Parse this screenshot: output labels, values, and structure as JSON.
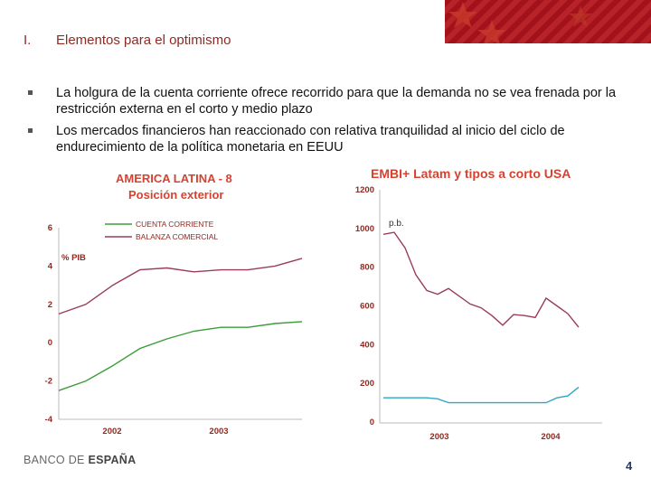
{
  "section": {
    "number": "I.",
    "title": "Elementos para el optimismo"
  },
  "bullets": [
    {
      "text": "La holgura de la cuenta corriente ofrece recorrido para que la demanda no se vea frenada por la restricción externa en el corto y medio plazo"
    },
    {
      "text": "Los mercados financieros han reaccionado con relativa tranquilidad al inicio del ciclo de endurecimiento de la política monetaria en EEUU"
    }
  ],
  "footer": {
    "logo_part1": "BANCO DE ",
    "logo_part2": "ESPAÑA",
    "page_number": "4"
  },
  "colors": {
    "title": "#8e2a22",
    "chart_title": "#d9412f",
    "green": "#3a9d3a",
    "purple": "#9a3b5e",
    "cyan": "#2ea8c0"
  },
  "chart_data": [
    {
      "type": "line",
      "title": "AMERICA LATINA - 8",
      "subtitle": "Posición exterior",
      "ylabel": "% PIB",
      "ylim": [
        -4,
        6
      ],
      "yticks": [
        "6",
        "4",
        "2",
        "0",
        "-2",
        "-4"
      ],
      "xticks": [
        "2002",
        "2003"
      ],
      "series": [
        {
          "name": "CUENTA CORRIENTE",
          "x": [
            0,
            1,
            2,
            3,
            4,
            5,
            6,
            7,
            8,
            9
          ],
          "values": [
            -2.5,
            -2.0,
            -1.2,
            -0.3,
            0.2,
            0.6,
            0.8,
            0.8,
            1.0,
            1.1
          ]
        },
        {
          "name": "BALANZA COMERCIAL",
          "x": [
            0,
            1,
            2,
            3,
            4,
            5,
            6,
            7,
            8,
            9
          ],
          "values": [
            1.5,
            2.0,
            3.0,
            3.8,
            3.9,
            3.7,
            3.8,
            3.8,
            4.0,
            4.4
          ]
        }
      ]
    },
    {
      "type": "line",
      "title": "EMBI+ Latam y tipos a corto USA",
      "ylabel": "p.b.",
      "ylim": [
        0,
        1200
      ],
      "yticks": [
        "1200",
        "1000",
        "800",
        "600",
        "400",
        "200",
        "0"
      ],
      "xticks": [
        "2003",
        "2004"
      ],
      "series": [
        {
          "name": "EMBI+ Latam",
          "x": [
            0,
            1,
            2,
            3,
            4,
            5,
            6,
            7,
            8,
            9,
            10,
            11,
            12,
            13,
            14,
            15,
            16,
            17,
            18
          ],
          "values": [
            970,
            980,
            900,
            760,
            680,
            660,
            690,
            650,
            610,
            590,
            550,
            500,
            555,
            550,
            540,
            640,
            600,
            560,
            490
          ]
        },
        {
          "name": "Tipos a corto USA",
          "x": [
            0,
            1,
            2,
            3,
            4,
            5,
            6,
            7,
            8,
            9,
            10,
            11,
            12,
            13,
            14,
            15,
            16,
            17,
            18
          ],
          "values": [
            125,
            125,
            125,
            125,
            125,
            120,
            100,
            100,
            100,
            100,
            100,
            100,
            100,
            100,
            100,
            100,
            125,
            135,
            180
          ]
        }
      ]
    }
  ]
}
